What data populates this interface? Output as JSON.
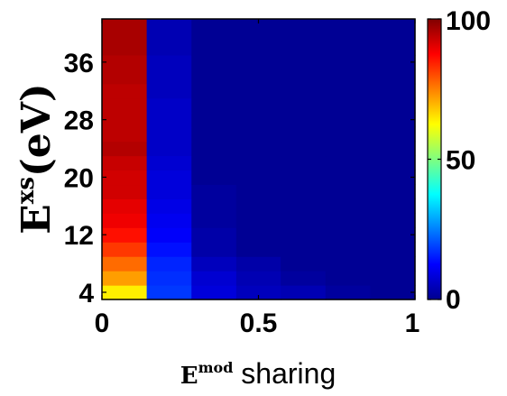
{
  "chart_data": {
    "type": "heatmap",
    "xlabel": {
      "base": "E",
      "sup": "mod",
      "suffix": " sharing"
    },
    "ylabel": {
      "base": "E",
      "sup": "xs",
      "suffix": "(eV)"
    },
    "xlim": [
      0,
      1
    ],
    "ylim": [
      3,
      42
    ],
    "x_ticks": [
      0,
      0.5,
      1
    ],
    "x_tick_labels": [
      "0",
      "0.5",
      "1"
    ],
    "y_ticks": [
      4,
      12,
      20,
      28,
      36
    ],
    "y_tick_labels": [
      "4",
      "12",
      "20",
      "28",
      "36"
    ],
    "x_bins": [
      0,
      0.143,
      0.286,
      0.429,
      0.571,
      0.714,
      0.857,
      1.0
    ],
    "y_bins": [
      3,
      5,
      7,
      9,
      11,
      13,
      15,
      17,
      19,
      21,
      23,
      25,
      27,
      29,
      31,
      33,
      35,
      37,
      39,
      42
    ],
    "values": [
      [
        64,
        18,
        9,
        6,
        5,
        3,
        2
      ],
      [
        72,
        17,
        8,
        5,
        3,
        2,
        2
      ],
      [
        77,
        16,
        6,
        4,
        2,
        2,
        2
      ],
      [
        82,
        14,
        4,
        2,
        2,
        2,
        2
      ],
      [
        86,
        12,
        4,
        2,
        2,
        2,
        2
      ],
      [
        89,
        11,
        3,
        2,
        2,
        2,
        2
      ],
      [
        90,
        10,
        3,
        2,
        2,
        2,
        2
      ],
      [
        92,
        9,
        3,
        2,
        2,
        2,
        2
      ],
      [
        92,
        9,
        2,
        2,
        2,
        2,
        2
      ],
      [
        93,
        8,
        2,
        2,
        2,
        2,
        2
      ],
      [
        95,
        7,
        2,
        2,
        2,
        2,
        2
      ],
      [
        94,
        7,
        2,
        2,
        2,
        2,
        2
      ],
      [
        94,
        7,
        2,
        2,
        2,
        2,
        2
      ],
      [
        94,
        7,
        2,
        2,
        2,
        2,
        2
      ],
      [
        94,
        6,
        2,
        2,
        2,
        2,
        2
      ],
      [
        95,
        6,
        2,
        2,
        2,
        2,
        2
      ],
      [
        95,
        6,
        2,
        2,
        2,
        2,
        2
      ],
      [
        96,
        5,
        2,
        2,
        2,
        2,
        2
      ],
      [
        96,
        5,
        2,
        2,
        2,
        2,
        2
      ]
    ],
    "colorbar": {
      "range": [
        0,
        100
      ],
      "ticks": [
        0,
        50,
        100
      ],
      "tick_labels": [
        "0",
        "50",
        "100"
      ],
      "colormap": "jet"
    },
    "grid": false
  }
}
